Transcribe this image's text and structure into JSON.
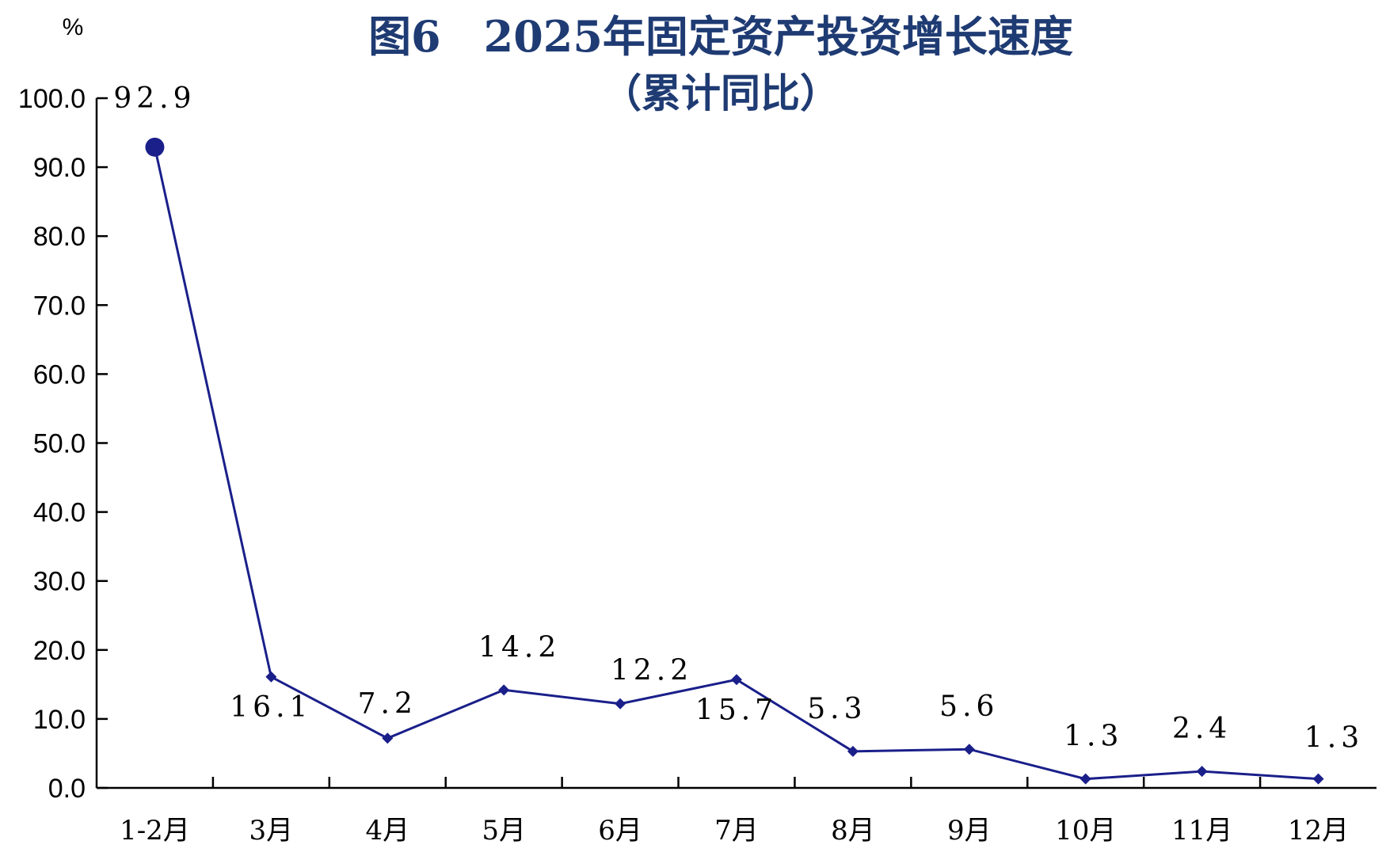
{
  "chart_data": {
    "type": "line",
    "title": "图6　2025年固定资产投资增长速度",
    "subtitle": "（累计同比）",
    "ylabel": "%",
    "xlabel": "",
    "ylim": [
      0,
      100
    ],
    "yticks": [
      0,
      10,
      20,
      30,
      40,
      50,
      60,
      70,
      80,
      90,
      100
    ],
    "ytick_labels": [
      "0.0",
      "10.0",
      "20.0",
      "30.0",
      "40.0",
      "50.0",
      "60.0",
      "70.0",
      "80.0",
      "90.0",
      "100.0"
    ],
    "categories": [
      "1-2月",
      "3月",
      "4月",
      "5月",
      "6月",
      "7月",
      "8月",
      "9月",
      "10月",
      "11月",
      "12月"
    ],
    "series": [
      {
        "values": [
          92.9,
          16.1,
          7.2,
          14.2,
          12.2,
          15.7,
          5.3,
          5.6,
          1.3,
          2.4,
          1.3
        ],
        "labels": [
          "92.9",
          "16.1",
          "7.2",
          "14.2",
          "12.2",
          "15.7",
          "5.3",
          "5.6",
          "1.3",
          "2.4",
          "1.3"
        ],
        "color": "#1a1f8a"
      }
    ],
    "grid": false,
    "legend": "none"
  }
}
